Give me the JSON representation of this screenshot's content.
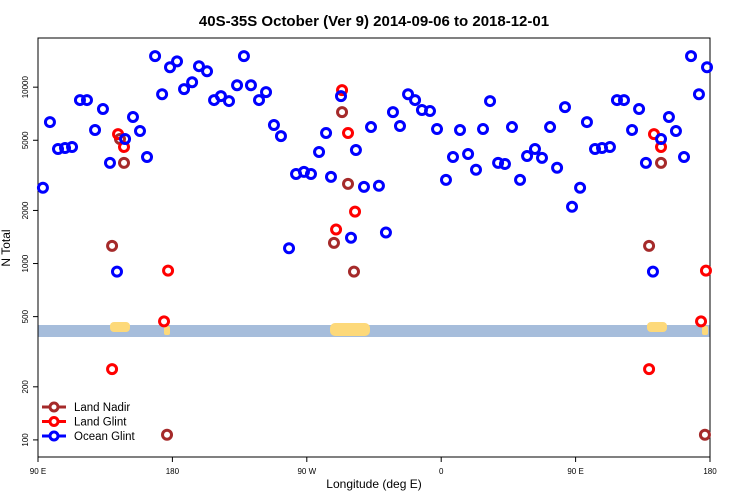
{
  "chart_data": {
    "type": "scatter",
    "title": "40S-35S October (Ver 9)   2014-09-06 to 2018-12-01",
    "x_label": "Longitude (deg E)",
    "y_label": "N Total",
    "xlim": [
      90,
      540
    ],
    "xticks": [
      {
        "value": 90,
        "label": "90 E"
      },
      {
        "value": 180,
        "label": "180"
      },
      {
        "value": 270,
        "label": "90 W"
      },
      {
        "value": 360,
        "label": "0"
      },
      {
        "value": 450,
        "label": "90 E"
      },
      {
        "value": 540,
        "label": "180"
      }
    ],
    "ylim": [
      80,
      19000
    ],
    "log_y": true,
    "yticks": [
      100,
      200,
      500,
      1000,
      2000,
      5000,
      10000
    ],
    "legend": "bottom-left",
    "series": [
      {
        "name": "Land Nadir",
        "color": "#a52a2a",
        "x": [
          139.6,
          147.6,
          144.9,
          293.6,
          297.6,
          288.2,
          301.6,
          176.4,
          499.2,
          507.2,
          536.6
        ],
        "values": [
          1260,
          3720,
          5080,
          7220,
          2830,
          1310,
          900,
          107,
          1260,
          3720,
          107
        ]
      },
      {
        "name": "Land Glint",
        "color": "#ff0000",
        "x": [
          143.6,
          147.6,
          177.1,
          174.4,
          293.6,
          297.6,
          302.3,
          289.6,
          139.6,
          502.5,
          507.2,
          537.3,
          534.0,
          499.2
        ],
        "values": [
          5420,
          4580,
          912,
          470,
          9620,
          5500,
          1970,
          1560,
          252,
          5420,
          4580,
          912,
          470,
          252
        ]
      },
      {
        "name": "Ocean Glint",
        "color": "#0000ff",
        "x": [
          93.3,
          98.0,
          103.4,
          108.1,
          112.8,
          118.1,
          122.8,
          128.2,
          133.5,
          138.2,
          142.9,
          148.3,
          153.6,
          158.3,
          163.0,
          168.4,
          173.1,
          178.4,
          183.1,
          187.8,
          193.2,
          197.8,
          203.2,
          207.9,
          212.5,
          217.9,
          223.3,
          227.9,
          232.6,
          238.0,
          242.7,
          248.0,
          252.7,
          258.1,
          262.8,
          268.1,
          272.8,
          278.2,
          282.9,
          286.2,
          292.9,
          299.6,
          302.9,
          308.3,
          313.0,
          318.3,
          323.0,
          327.7,
          332.4,
          337.8,
          342.5,
          347.1,
          352.5,
          357.2,
          363.2,
          367.9,
          372.6,
          378.0,
          383.3,
          388.0,
          392.7,
          398.1,
          402.7,
          407.4,
          412.8,
          417.5,
          422.8,
          427.5,
          432.9,
          437.6,
          442.9,
          447.6,
          453.0,
          457.6,
          463.0,
          467.7,
          473.0,
          477.7,
          482.4,
          487.8,
          492.5,
          497.1,
          501.8,
          507.2,
          512.5,
          517.2,
          522.6,
          527.3,
          532.6,
          538.0
        ],
        "values": [
          2690,
          6340,
          4460,
          4520,
          4580,
          8450,
          8450,
          5720,
          7520,
          3720,
          900,
          5080,
          6770,
          5640,
          4020,
          15000,
          9120,
          12970,
          14000,
          9750,
          10670,
          13150,
          12300,
          8450,
          8890,
          8340,
          10260,
          15000,
          10260,
          8450,
          9370,
          6100,
          5280,
          1220,
          3220,
          3310,
          3220,
          4290,
          5500,
          3100,
          8890,
          1400,
          4400,
          2720,
          5940,
          2760,
          1500,
          7220,
          6020,
          9120,
          8450,
          7420,
          7320,
          5790,
          2980,
          4020,
          5720,
          4180,
          3400,
          5790,
          8340,
          3720,
          3670,
          5940,
          2980,
          4070,
          4460,
          3970,
          5940,
          3490,
          7710,
          2100,
          2690,
          6340,
          4460,
          4520,
          4580,
          8450,
          8450,
          5720,
          7520,
          3720,
          900,
          5080,
          6770,
          5640,
          4020,
          15000,
          9120,
          12970
        ]
      }
    ]
  }
}
